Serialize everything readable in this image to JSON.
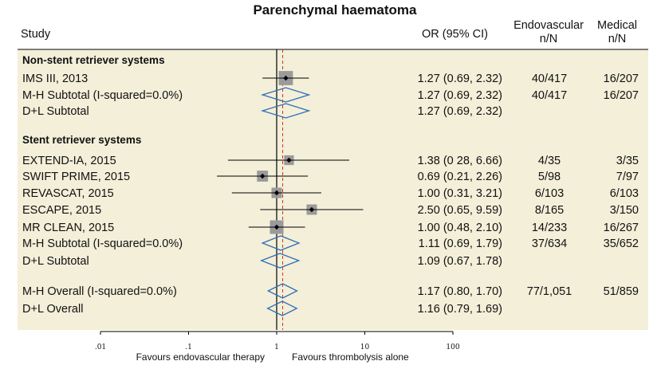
{
  "chart_data": {
    "type": "forest",
    "title": "Parenchymal haematoma",
    "columns": {
      "study": "Study",
      "or": "OR (95% CI)",
      "endo": [
        "Endovascular",
        "n/N"
      ],
      "medical": [
        "Medical",
        "n/N"
      ]
    },
    "x_axis": {
      "scale": "log",
      "ticks": [
        {
          "value": 0.01,
          "label": ".01"
        },
        {
          "value": 0.1,
          "label": ".1"
        },
        {
          "value": 1,
          "label": "1"
        },
        {
          "value": 10,
          "label": "10"
        },
        {
          "value": 100,
          "label": "100"
        }
      ],
      "left_label": "Favours endovascular therapy",
      "right_label": "Favours thrombolysis alone",
      "null_value": 1,
      "overall_value": 1.17
    },
    "rows": [
      {
        "kind": "group",
        "label": "Non-stent retriever systems"
      },
      {
        "kind": "study",
        "label": "IMS III, 2013",
        "or": 1.27,
        "lo": 0.69,
        "hi": 2.32,
        "or_text": "1.27 (0.69, 2.32)",
        "endo": "40/417",
        "medical": "16/207",
        "weight": 1.1
      },
      {
        "kind": "diamond",
        "label": "M-H Subtotal (I-squared=0.0%)",
        "or": 1.27,
        "lo": 0.69,
        "hi": 2.32,
        "or_text": "1.27 (0.69, 2.32)",
        "endo": "40/417",
        "medical": "16/207"
      },
      {
        "kind": "diamond",
        "label": "D+L Subtotal",
        "or": 1.27,
        "lo": 0.69,
        "hi": 2.32,
        "or_text": "1.27 (0.69, 2.32)",
        "endo": "",
        "medical": ""
      },
      {
        "kind": "blank"
      },
      {
        "kind": "group",
        "label": "Stent retriever systems"
      },
      {
        "kind": "study",
        "label": "EXTEND-IA, 2015",
        "or": 1.38,
        "lo": 0.28,
        "hi": 6.66,
        "or_text": "1.38 (0 28, 6.66)",
        "endo": "4/35",
        "medical": "3/35",
        "weight": 0.4
      },
      {
        "kind": "study",
        "label": "SWIFT PRIME, 2015",
        "or": 0.69,
        "lo": 0.21,
        "hi": 2.26,
        "or_text": "0.69 (0.21, 2.26)",
        "endo": "5/98",
        "medical": "7/97",
        "weight": 0.6
      },
      {
        "kind": "study",
        "label": "REVASCAT, 2015",
        "or": 1.0,
        "lo": 0.31,
        "hi": 3.21,
        "or_text": "1.00 (0.31, 3.21)",
        "endo": "6/103",
        "medical": "6/103",
        "weight": 0.5
      },
      {
        "kind": "study",
        "label": "ESCAPE, 2015",
        "or": 2.5,
        "lo": 0.65,
        "hi": 9.59,
        "or_text": "2.50 (0.65, 9.59)",
        "endo": "8/165",
        "medical": "3/150",
        "weight": 0.5
      },
      {
        "kind": "study",
        "label": "MR CLEAN, 2015",
        "or": 1.0,
        "lo": 0.48,
        "hi": 2.1,
        "or_text": "1.00 (0.48, 2.10)",
        "endo": "14/233",
        "medical": "16/267",
        "weight": 1.0
      },
      {
        "kind": "diamond",
        "label": "M-H Subtotal (I-squared=0.0%)",
        "or": 1.11,
        "lo": 0.69,
        "hi": 1.79,
        "or_text": "1.11 (0.69, 1.79)",
        "endo": "37/634",
        "medical": "35/652"
      },
      {
        "kind": "diamond",
        "label": "D+L Subtotal",
        "or": 1.09,
        "lo": 0.67,
        "hi": 1.78,
        "or_text": "1.09 (0.67, 1.78)",
        "endo": "",
        "medical": ""
      },
      {
        "kind": "blank"
      },
      {
        "kind": "diamond",
        "label": "M-H Overall (I-squared=0.0%)",
        "or": 1.17,
        "lo": 0.8,
        "hi": 1.7,
        "or_text": "1.17 (0.80, 1.70)",
        "endo": "77/1,051",
        "medical": "51/859"
      },
      {
        "kind": "diamond",
        "label": "D+L Overall",
        "or": 1.16,
        "lo": 0.79,
        "hi": 1.69,
        "or_text": "1.16 (0.79, 1.69)",
        "endo": "",
        "medical": ""
      }
    ],
    "colors": {
      "panel_bg": "#f3efd9",
      "diamond": "#2f6fb5",
      "overall_line": "#d0312d",
      "box": "#9a9a9a",
      "line": "#000000"
    }
  }
}
